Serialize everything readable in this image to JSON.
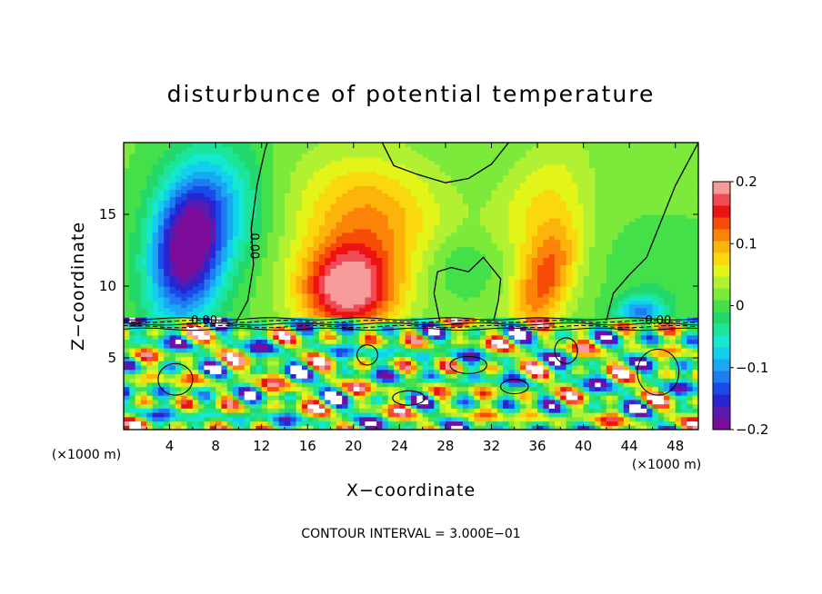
{
  "chart_data": {
    "type": "heatmap",
    "title": "disturbunce of potential temperature",
    "xlabel": "X−coordinate",
    "ylabel": "Z−coordinate",
    "x_unit": "(×1000 m)",
    "xlim": [
      0,
      50
    ],
    "ylim": [
      0,
      20
    ],
    "x_ticks": [
      4,
      8,
      12,
      16,
      20,
      24,
      28,
      32,
      36,
      40,
      44,
      48
    ],
    "y_ticks": [
      5,
      10,
      15
    ],
    "colorbar": {
      "range": [
        -0.2,
        0.2
      ],
      "tick_values": [
        -0.2,
        -0.1,
        0,
        0.1,
        0.2
      ],
      "tick_labels": [
        "−0.2",
        "−0.1",
        "0",
        "0.1",
        "0.2"
      ],
      "colors": [
        "#7a0c99",
        "#5a1ab0",
        "#2a24d0",
        "#1a4ae8",
        "#1f7bf0",
        "#1aa8f4",
        "#12cfee",
        "#14e8cf",
        "#1ce49a",
        "#22d86a",
        "#44e04a",
        "#7cea3a",
        "#b2f032",
        "#e2f418",
        "#fbd80e",
        "#fdb40a",
        "#fb8408",
        "#f74c06",
        "#ee1212",
        "#f04a54",
        "#f79a9a"
      ]
    },
    "contour_label": "0.00",
    "contour_interval_note": "CONTOUR INTERVAL = 3.000E−01",
    "field_features": [
      {
        "kind": "min",
        "x": 5.5,
        "z": 12.5,
        "value": -0.2
      },
      {
        "kind": "max",
        "x": 19.5,
        "z": 10.0,
        "value": 0.17
      },
      {
        "kind": "max",
        "x": 36.5,
        "z": 10.5,
        "value": 0.12
      },
      {
        "kind": "max",
        "x": 22.0,
        "z": 15.5,
        "value": 0.08
      },
      {
        "kind": "min",
        "x": 45.0,
        "z": 8.5,
        "value": -0.1
      }
    ]
  }
}
